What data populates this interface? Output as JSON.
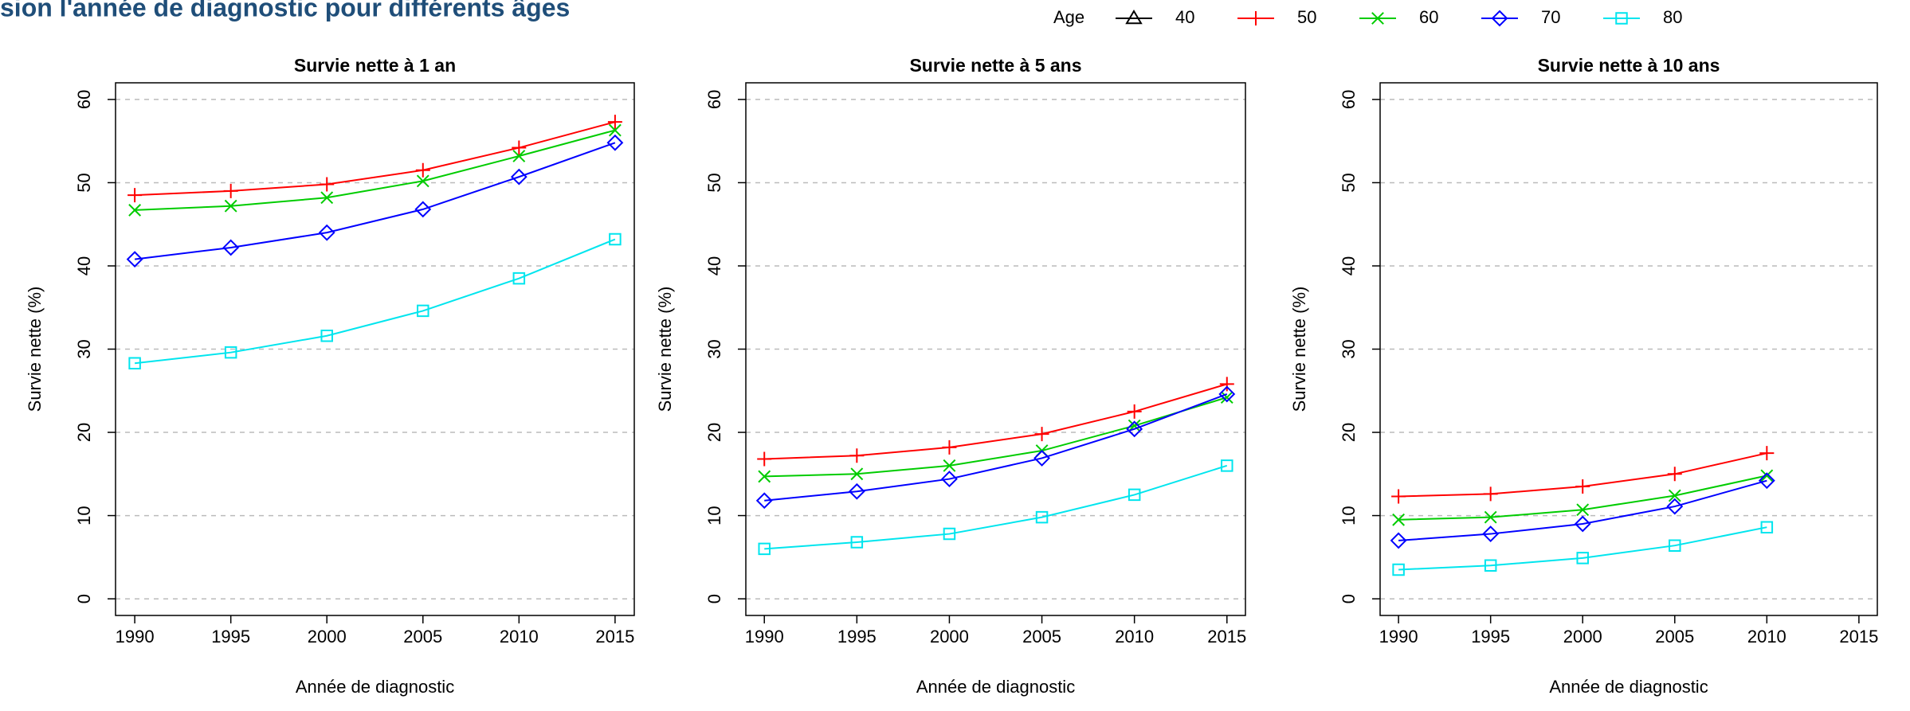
{
  "title": "sion l'année de diagnostic pour différents âges",
  "legend_title": "Age",
  "chart_data": [
    {
      "type": "line",
      "title": "Survie nette à 1 an",
      "xlabel": "Année de diagnostic",
      "ylabel": "Survie nette (%)",
      "x": [
        1990,
        1995,
        2000,
        2005,
        2010,
        2015
      ],
      "xlim": [
        1989,
        2016
      ],
      "xticks": [
        1990,
        1995,
        2000,
        2005,
        2010,
        2015
      ],
      "ylim": [
        -2,
        62
      ],
      "yticks": [
        0,
        10,
        20,
        30,
        40,
        50,
        60
      ],
      "grid": true,
      "series": [
        {
          "name": "40",
          "color": "#000000",
          "marker": "triangle",
          "values": [
            null,
            null,
            null,
            null,
            null,
            null
          ]
        },
        {
          "name": "50",
          "color": "#ff0000",
          "marker": "plus",
          "values": [
            48.5,
            49,
            49.8,
            51.5,
            54.2,
            57.3
          ]
        },
        {
          "name": "60",
          "color": "#00cc00",
          "marker": "cross",
          "values": [
            46.7,
            47.2,
            48.2,
            50.2,
            53.2,
            56.3
          ]
        },
        {
          "name": "70",
          "color": "#0000ff",
          "marker": "diamond",
          "values": [
            40.8,
            42.2,
            44,
            46.8,
            50.7,
            54.8
          ]
        },
        {
          "name": "80",
          "color": "#00e5ee",
          "marker": "square",
          "values": [
            28.3,
            29.6,
            31.6,
            34.6,
            38.5,
            43.2
          ]
        }
      ]
    },
    {
      "type": "line",
      "title": "Survie nette à 5 ans",
      "xlabel": "Année de diagnostic",
      "ylabel": "Survie nette (%)",
      "x": [
        1990,
        1995,
        2000,
        2005,
        2010,
        2015
      ],
      "xlim": [
        1989,
        2016
      ],
      "xticks": [
        1990,
        1995,
        2000,
        2005,
        2010,
        2015
      ],
      "ylim": [
        -2,
        62
      ],
      "yticks": [
        0,
        10,
        20,
        30,
        40,
        50,
        60
      ],
      "grid": true,
      "series": [
        {
          "name": "40",
          "color": "#000000",
          "marker": "triangle",
          "values": [
            null,
            null,
            null,
            null,
            null,
            null
          ]
        },
        {
          "name": "50",
          "color": "#ff0000",
          "marker": "plus",
          "values": [
            16.8,
            17.2,
            18.2,
            19.8,
            22.5,
            25.8
          ]
        },
        {
          "name": "60",
          "color": "#00cc00",
          "marker": "cross",
          "values": [
            14.7,
            15,
            16,
            17.8,
            20.8,
            24.2
          ]
        },
        {
          "name": "70",
          "color": "#0000ff",
          "marker": "diamond",
          "values": [
            11.8,
            12.9,
            14.4,
            16.9,
            20.4,
            24.6
          ]
        },
        {
          "name": "80",
          "color": "#00e5ee",
          "marker": "square",
          "values": [
            6,
            6.8,
            7.8,
            9.8,
            12.5,
            16
          ]
        }
      ]
    },
    {
      "type": "line",
      "title": "Survie nette à 10 ans",
      "xlabel": "Année de diagnostic",
      "ylabel": "Survie nette (%)",
      "x": [
        1990,
        1995,
        2000,
        2005,
        2010
      ],
      "xlim": [
        1989,
        2016
      ],
      "xticks": [
        1990,
        1995,
        2000,
        2005,
        2010,
        2015
      ],
      "ylim": [
        -2,
        62
      ],
      "yticks": [
        0,
        10,
        20,
        30,
        40,
        50,
        60
      ],
      "grid": true,
      "series": [
        {
          "name": "40",
          "color": "#000000",
          "marker": "triangle",
          "values": [
            null,
            null,
            null,
            null,
            null
          ]
        },
        {
          "name": "50",
          "color": "#ff0000",
          "marker": "plus",
          "values": [
            12.3,
            12.6,
            13.5,
            15,
            17.5
          ]
        },
        {
          "name": "60",
          "color": "#00cc00",
          "marker": "cross",
          "values": [
            9.5,
            9.8,
            10.7,
            12.4,
            14.8
          ]
        },
        {
          "name": "70",
          "color": "#0000ff",
          "marker": "diamond",
          "values": [
            7,
            7.8,
            9,
            11.1,
            14.2
          ]
        },
        {
          "name": "80",
          "color": "#00e5ee",
          "marker": "square",
          "values": [
            3.5,
            4,
            4.9,
            6.4,
            8.6
          ]
        }
      ]
    }
  ]
}
